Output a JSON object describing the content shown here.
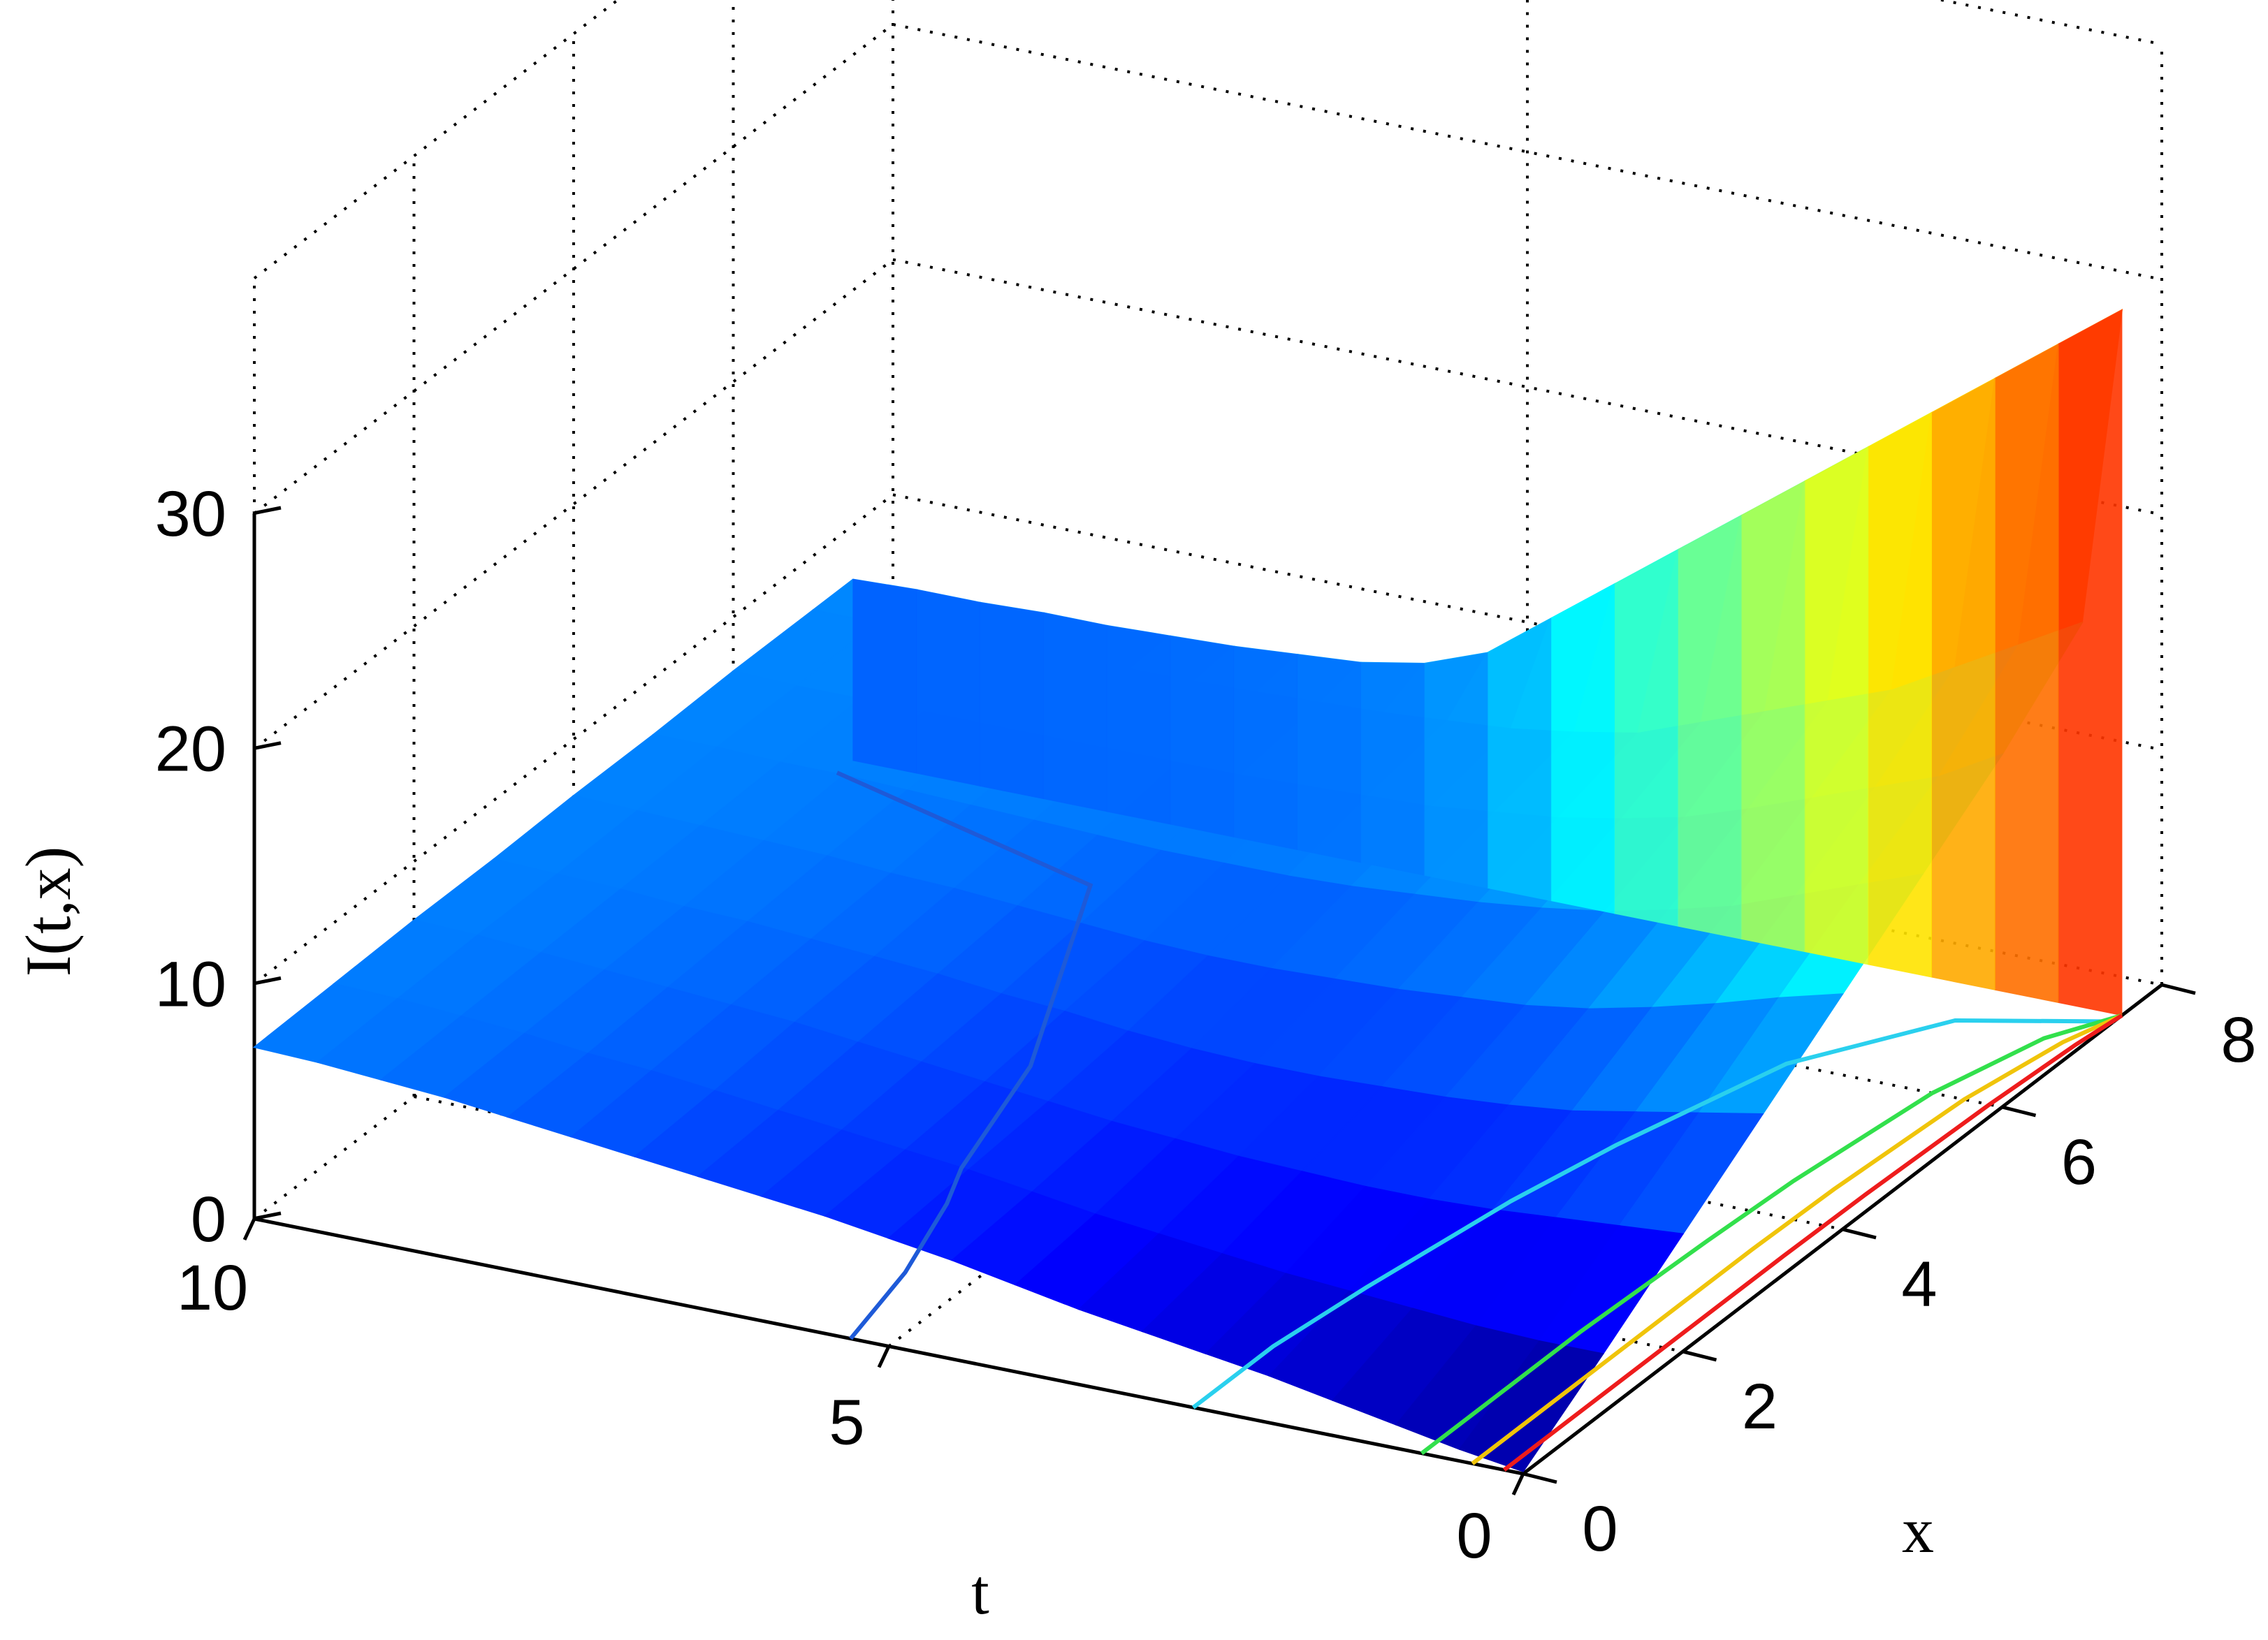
{
  "chart_data": {
    "type": "surface3d",
    "title": "",
    "xlabel": "t",
    "ylabel": "x",
    "zlabel": "I(t,x)",
    "t_ticks": [
      "0",
      "5",
      "10"
    ],
    "x_ticks": [
      "0",
      "2",
      "4",
      "6",
      "8"
    ],
    "z_ticks": [
      "0",
      "10",
      "20",
      "30"
    ],
    "t_range": [
      0,
      10
    ],
    "x_range": [
      0,
      8
    ],
    "z_range": [
      0,
      30
    ],
    "grid": true,
    "colormap": "jet",
    "grid_t": [
      0,
      0.5,
      1,
      1.5,
      2,
      2.5,
      3,
      3.5,
      4,
      4.5,
      5,
      5.5,
      6,
      6.5,
      7,
      7.5,
      8,
      8.5,
      9,
      9.5,
      10
    ],
    "grid_x": [
      0,
      1,
      2,
      3,
      4,
      5,
      6,
      7,
      7.5
    ],
    "surface_z": [
      [
        0.1,
        2.5,
        5.0,
        7.5,
        10.0,
        12.5,
        15.0,
        18.0,
        30.0
      ],
      [
        0.5,
        2.5,
        4.8,
        7.0,
        9.3,
        11.5,
        13.5,
        16.5,
        28.0
      ],
      [
        1.0,
        2.6,
        4.6,
        6.5,
        8.5,
        10.5,
        12.5,
        15.0,
        26.0
      ],
      [
        1.5,
        2.8,
        4.4,
        6.0,
        7.8,
        9.5,
        11.5,
        13.5,
        24.0
      ],
      [
        2.0,
        3.0,
        4.3,
        5.7,
        7.2,
        8.8,
        10.5,
        12.5,
        22.0
      ],
      [
        2.4,
        3.2,
        4.3,
        5.5,
        6.8,
        8.2,
        9.6,
        11.5,
        20.0
      ],
      [
        2.8,
        3.5,
        4.4,
        5.4,
        6.6,
        7.8,
        9.0,
        10.5,
        18.0
      ],
      [
        3.2,
        3.8,
        4.5,
        5.3,
        6.4,
        7.5,
        8.5,
        9.5,
        16.0
      ],
      [
        3.7,
        4.1,
        4.7,
        5.3,
        6.3,
        7.3,
        8.2,
        9.0,
        14.0
      ],
      [
        4.2,
        4.5,
        4.9,
        5.4,
        6.2,
        7.1,
        7.9,
        8.6,
        12.0
      ],
      [
        4.6,
        4.9,
        5.2,
        5.6,
        6.2,
        7.0,
        7.8,
        8.4,
        10.0
      ],
      [
        5.0,
        5.2,
        5.5,
        5.9,
        6.3,
        7.0,
        7.7,
        8.2,
        9.0
      ],
      [
        5.3,
        5.5,
        5.8,
        6.1,
        6.5,
        7.0,
        7.6,
        8.1,
        8.5
      ],
      [
        5.6,
        5.8,
        6.1,
        6.4,
        6.7,
        7.1,
        7.6,
        8.0,
        8.3
      ],
      [
        5.9,
        6.1,
        6.4,
        6.6,
        6.9,
        7.2,
        7.6,
        7.9,
        8.1
      ],
      [
        6.2,
        6.4,
        6.6,
        6.8,
        7.0,
        7.3,
        7.6,
        7.9,
        8.0
      ],
      [
        6.5,
        6.6,
        6.8,
        7.0,
        7.2,
        7.4,
        7.6,
        7.8,
        7.9
      ],
      [
        6.8,
        6.9,
        7.0,
        7.1,
        7.3,
        7.5,
        7.6,
        7.8,
        7.9
      ],
      [
        7.0,
        7.1,
        7.2,
        7.3,
        7.4,
        7.5,
        7.6,
        7.7,
        7.8
      ],
      [
        7.2,
        7.3,
        7.4,
        7.4,
        7.5,
        7.6,
        7.6,
        7.7,
        7.8
      ],
      [
        7.3,
        7.4,
        7.5,
        7.5,
        7.6,
        7.6,
        7.7,
        7.7,
        7.7
      ]
    ],
    "contours": [
      {
        "color": "#1e5ad8",
        "points": [
          [
            5.3,
            0
          ],
          [
            5.5,
            1.0
          ],
          [
            5.8,
            2.0
          ],
          [
            6.0,
            2.5
          ],
          [
            6.4,
            4.0
          ],
          [
            7.5,
            6.5
          ],
          [
            10,
            7.3
          ]
        ]
      },
      {
        "color": "#2ad0ee",
        "points": [
          [
            2.6,
            0
          ],
          [
            2.6,
            1.0
          ],
          [
            2.5,
            2.0
          ],
          [
            2.3,
            3.5
          ],
          [
            2.1,
            4.5
          ],
          [
            1.7,
            6.0
          ],
          [
            1.0,
            7.0
          ],
          [
            0,
            7.4
          ]
        ]
      },
      {
        "color": "#32e04c",
        "points": [
          [
            0.8,
            0
          ],
          [
            0.8,
            1.0
          ],
          [
            0.8,
            2.0
          ],
          [
            0.75,
            3.5
          ],
          [
            0.7,
            4.5
          ],
          [
            0.55,
            6.0
          ],
          [
            0.3,
            7.0
          ],
          [
            0,
            7.5
          ]
        ]
      },
      {
        "color": "#f0c40a",
        "points": [
          [
            0.4,
            0
          ],
          [
            0.4,
            1.0
          ],
          [
            0.4,
            2.0
          ],
          [
            0.4,
            3.5
          ],
          [
            0.38,
            4.5
          ],
          [
            0.3,
            6.0
          ],
          [
            0.15,
            7.0
          ],
          [
            0,
            7.5
          ]
        ]
      },
      {
        "color": "#ee1c1c",
        "points": [
          [
            0.15,
            0
          ],
          [
            0.15,
            1.0
          ],
          [
            0.15,
            2.0
          ],
          [
            0.15,
            3.5
          ],
          [
            0.14,
            4.5
          ],
          [
            0.1,
            6.0
          ],
          [
            0.05,
            7.0
          ],
          [
            0,
            7.5
          ]
        ]
      }
    ]
  }
}
